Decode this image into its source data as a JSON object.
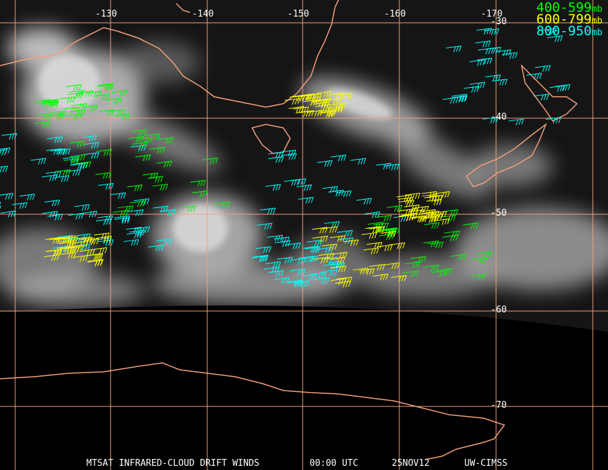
{
  "map": {
    "longitude_labels": [
      "-130",
      "-140",
      "-150",
      "-160",
      "-170"
    ],
    "latitude_labels": [
      "-30",
      "-40",
      "-50",
      "-60",
      "-70"
    ],
    "colors": {
      "gridline": "#f4a07a",
      "coastline": "#f4a07a",
      "background": "#000000",
      "clouds": "#cfcfcf"
    }
  },
  "legend": [
    {
      "range": "400-599",
      "unit": "mb",
      "color": "#00ff00"
    },
    {
      "range": "600-799",
      "unit": "mb",
      "color": "#ffff00"
    },
    {
      "range": "800-950",
      "unit": "mb",
      "color": "#00ffff"
    }
  ],
  "footer": {
    "product": "MTSAT INFRARED-CLOUD DRIFT WINDS",
    "time": "00:00 UTC",
    "date": "25NOV12",
    "source": "UW-CIMSS"
  }
}
